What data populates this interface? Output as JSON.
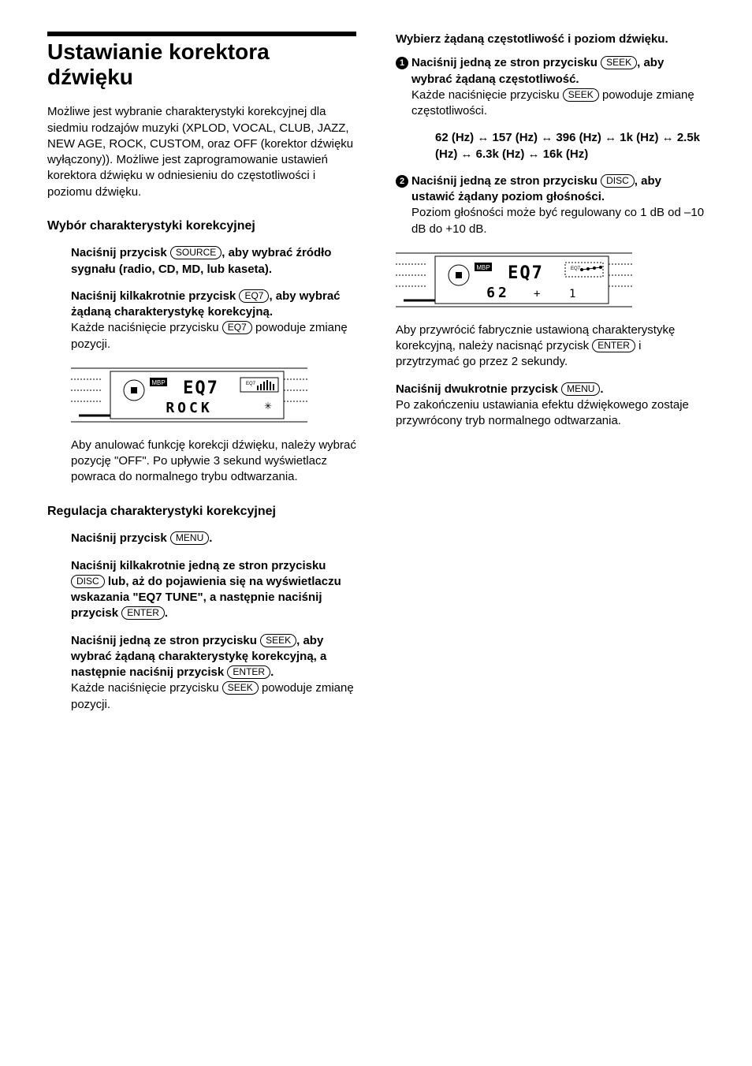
{
  "title": "Ustawianie korektora dźwięku",
  "intro": "Możliwe jest wybranie charakterystyki korekcyjnej dla siedmiu rodzajów muzyki (XPLOD, VOCAL, CLUB, JAZZ, NEW AGE, ROCK, CUSTOM, oraz OFF (korektor dźwięku wyłączony)). Możliwe jest zaprogramowanie ustawień korektora dźwięku w odniesieniu do częstotliwości i poziomu dźwięku.",
  "sec1_title": "Wybór charakterystyki korekcyjnej",
  "s1a_pre": "Naciśnij przycisk ",
  "s1a_post": ", aby wybrać źródło sygnału (radio, CD, MD, lub kaseta).",
  "s1b_pre": "Naciśnij kilkakrotnie przycisk ",
  "s1b_post": ", aby wybrać żądaną charakterystykę korekcyjną.",
  "s1b_body_pre": "Każde naciśnięcie przycisku ",
  "s1b_body_post": " powoduje zmianę pozycji.",
  "cancel": "Aby anulować funkcję korekcji dźwięku, należy wybrać pozycję \"OFF\". Po upływie 3 sekund wyświetlacz powraca do normalnego trybu odtwarzania.",
  "sec2_title": "Regulacja charakterystyki korekcyjnej",
  "s2a_pre": "Naciśnij przycisk ",
  "s2a_post": ".",
  "s2b_pre": "Naciśnij kilkakrotnie jedną ze stron przycisku ",
  "s2b_mid": " lub, aż do pojawienia się na wyświetlaczu wskazania \"EQ7 TUNE\", a następnie naciśnij przycisk ",
  "s2b_post": ".",
  "s2c_pre": "Naciśnij jedną ze stron przycisku ",
  "s2c_mid": ", aby wybrać żądaną charakterystykę korekcyjną, a następnie naciśnij przycisk ",
  "s2c_post": ".",
  "s2c_body_pre": "Każde naciśnięcie przycisku ",
  "s2c_body_post": " powoduje zmianę pozycji.",
  "r_title": "Wybierz żądaną częstotliwość i poziom dźwięku.",
  "r1_pre": "Naciśnij jedną ze stron przycisku ",
  "r1_post": ", aby wybrać żądaną częstotliwość.",
  "r1_body_pre": "Każde naciśnięcie przycisku ",
  "r1_body_post": " powoduje zmianę częstotliwości.",
  "freq_items": [
    "62 (Hz)",
    "157 (Hz)",
    "396 (Hz)",
    "1k (Hz)",
    "2.5k (Hz)",
    "6.3k (Hz)",
    "16k (Hz)"
  ],
  "r2_pre": "Naciśnij jedną ze stron przycisku ",
  "r2_post": ", aby ustawić żądany poziom głośności.",
  "r2_body": "Poziom głośności może być regulowany co 1 dB od –10 dB do +10 dB.",
  "restore_pre": "Aby przywrócić fabrycznie ustawioną charakterystykę korekcyjną, należy nacisnąć przycisk ",
  "restore_post": " i przytrzymać go przez 2 sekundy.",
  "final_pre": "Naciśnij dwukrotnie przycisk ",
  "final_post": ".",
  "final_body": "Po zakończeniu ustawiania efektu dźwiękowego zostaje przywrócony tryb normalnego odtwarzania.",
  "btn": {
    "source": "SOURCE",
    "eq7": "EQ7",
    "menu": "MENU",
    "disc": "DISC",
    "enter": "ENTER",
    "seek": "SEEK"
  },
  "display1": {
    "eq_text": "EQ7",
    "mode_text": "ROCK",
    "mbp": "MBP",
    "eq_label": "EQ7"
  },
  "display2": {
    "eq_text": "EQ7",
    "mode_text": "62",
    "mbp": "MBP",
    "eq_label": "EQ7"
  },
  "colors": {
    "text": "#000000",
    "bg": "#ffffff"
  }
}
